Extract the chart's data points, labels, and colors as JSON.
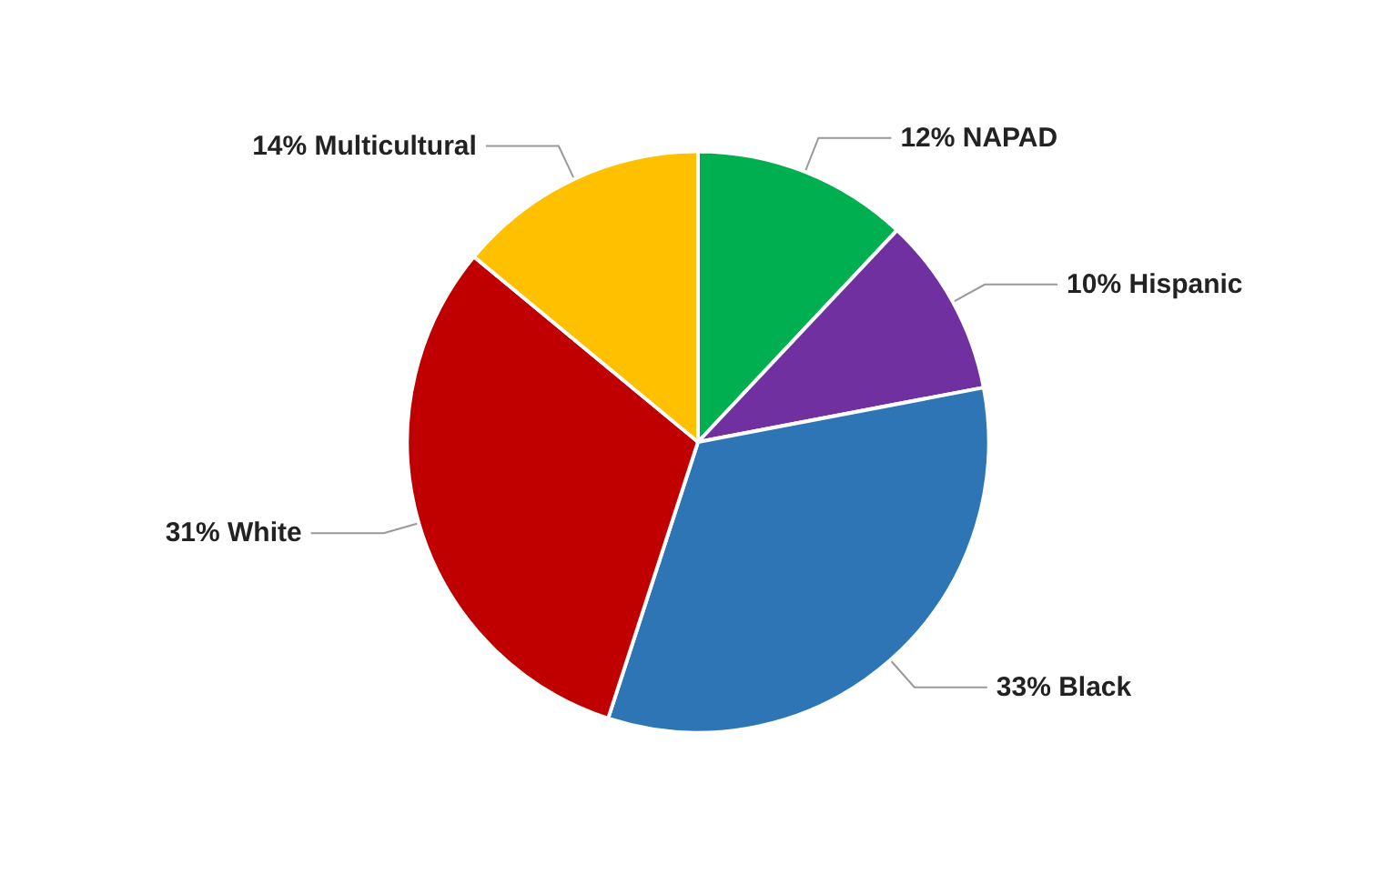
{
  "chart_data": {
    "type": "pie",
    "categories": [
      "NAPAD",
      "Hispanic",
      "Black",
      "White",
      "Multicultural"
    ],
    "values": [
      12,
      10,
      33,
      31,
      14
    ],
    "value_labels": [
      "12%",
      "10%",
      "33%",
      "31%",
      "14%"
    ],
    "colors": [
      "#00b050",
      "#7030a0",
      "#2e75b6",
      "#c00000",
      "#ffc000"
    ],
    "legend": false
  }
}
